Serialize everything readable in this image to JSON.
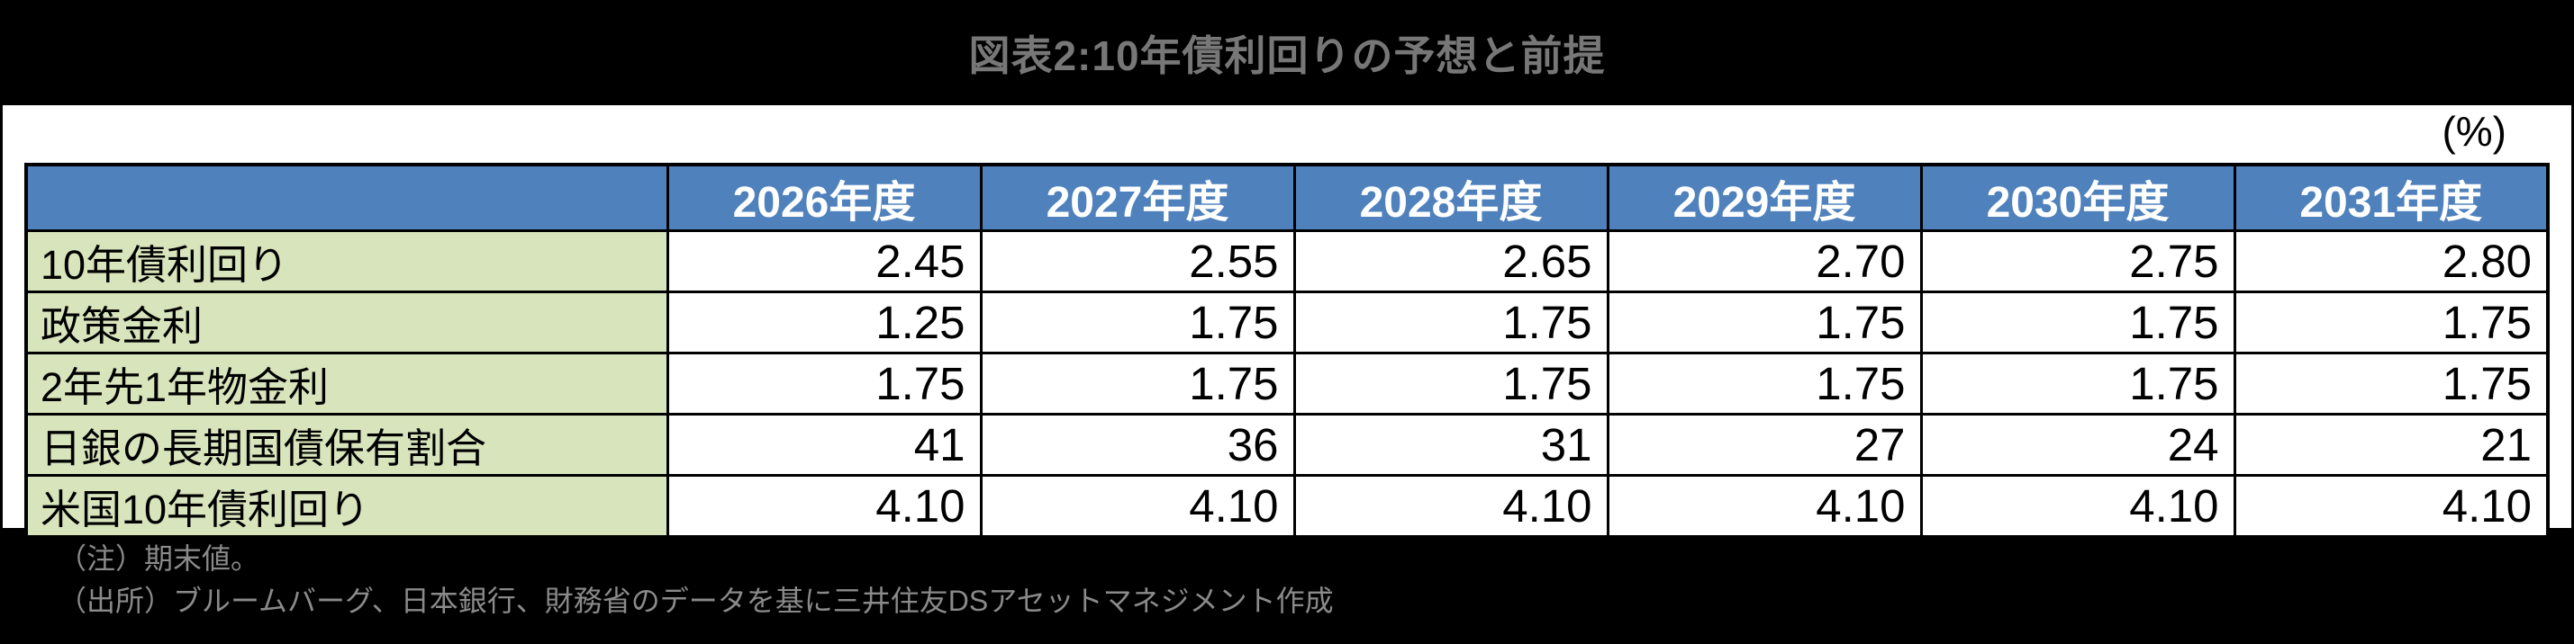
{
  "chart_data": {
    "type": "table",
    "title": "図表2:10年債利回りの予想と前提",
    "unit_label": "(%)",
    "columns": [
      "2026年度",
      "2027年度",
      "2028年度",
      "2029年度",
      "2030年度",
      "2031年度"
    ],
    "rows": [
      {
        "label": "10年債利回り",
        "values": [
          "2.45",
          "2.55",
          "2.65",
          "2.70",
          "2.75",
          "2.80"
        ]
      },
      {
        "label": "政策金利",
        "values": [
          "1.25",
          "1.75",
          "1.75",
          "1.75",
          "1.75",
          "1.75"
        ]
      },
      {
        "label": "2年先1年物金利",
        "values": [
          "1.75",
          "1.75",
          "1.75",
          "1.75",
          "1.75",
          "1.75"
        ]
      },
      {
        "label": "日銀の長期国債保有割合",
        "values": [
          "41",
          "36",
          "31",
          "27",
          "24",
          "21"
        ]
      },
      {
        "label": "米国10年債利回り",
        "values": [
          "4.10",
          "4.10",
          "4.10",
          "4.10",
          "4.10",
          "4.10"
        ]
      }
    ],
    "notes": [
      "（注）期末値。",
      "（出所）ブルームバーグ、日本銀行、財務省のデータを基に三井住友DSアセットマネジメント作成"
    ],
    "layout_hints": {
      "legend": "none",
      "grid": "black table borders",
      "value_alignment": "right",
      "header_alignment": "center"
    },
    "colors": {
      "page_background": "#000000",
      "panel_background": "#FFFFFF",
      "header_background": "#4F81BD",
      "header_text": "#FFFFFF",
      "row_label_background": "#D7E4BC",
      "value_text": "#000000",
      "border": "#000000",
      "title_text": "#777777",
      "note_text": "#8A8A8A"
    }
  }
}
